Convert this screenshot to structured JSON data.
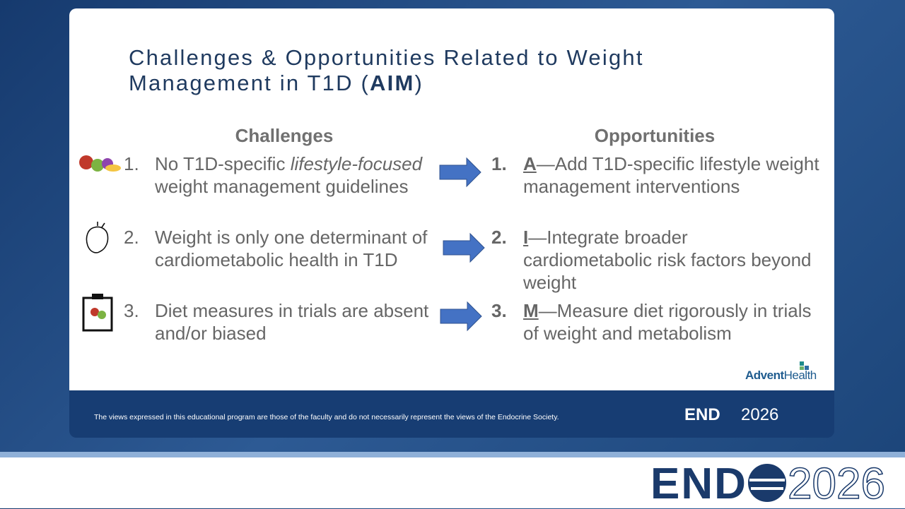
{
  "title": {
    "text": "Challenges & Opportunities Related to Weight Management in T1D (",
    "bold": "AIM",
    "end": ")"
  },
  "challenges": {
    "heading": "Challenges",
    "items": [
      {
        "number": "1.",
        "segments": [
          {
            "text": "No T1D-specific "
          },
          {
            "text": "lifestyle-focused",
            "italic": true
          },
          {
            "text": " weight management guidelines"
          }
        ]
      },
      {
        "number": "2.",
        "segments": [
          {
            "text": "Weight is only one determinant of cardiometabolic health in T1D"
          }
        ]
      },
      {
        "number": "3.",
        "segments": [
          {
            "text": "Diet measures in trials are absent and/or biased"
          }
        ]
      }
    ]
  },
  "opportunities": {
    "heading": "Opportunities",
    "items": [
      {
        "number": "1.",
        "letter": "A",
        "text": "—Add T1D-specific lifestyle weight management interventions"
      },
      {
        "number": "2.",
        "letter": "I",
        "text": "—Integrate broader cardiometabolic risk factors beyond weight"
      },
      {
        "number": "3.",
        "letter": "M",
        "text": "—Measure diet rigorously in trials of weight and metabolism"
      }
    ]
  },
  "disclaimer": "The views expressed in this educational program are those of the faculty and do not necessarily represent the views of the Endocrine Society.",
  "brand": {
    "advent": "Advent",
    "health": "Health"
  },
  "endo_logo": {
    "left": "END",
    "right": "2026"
  }
}
